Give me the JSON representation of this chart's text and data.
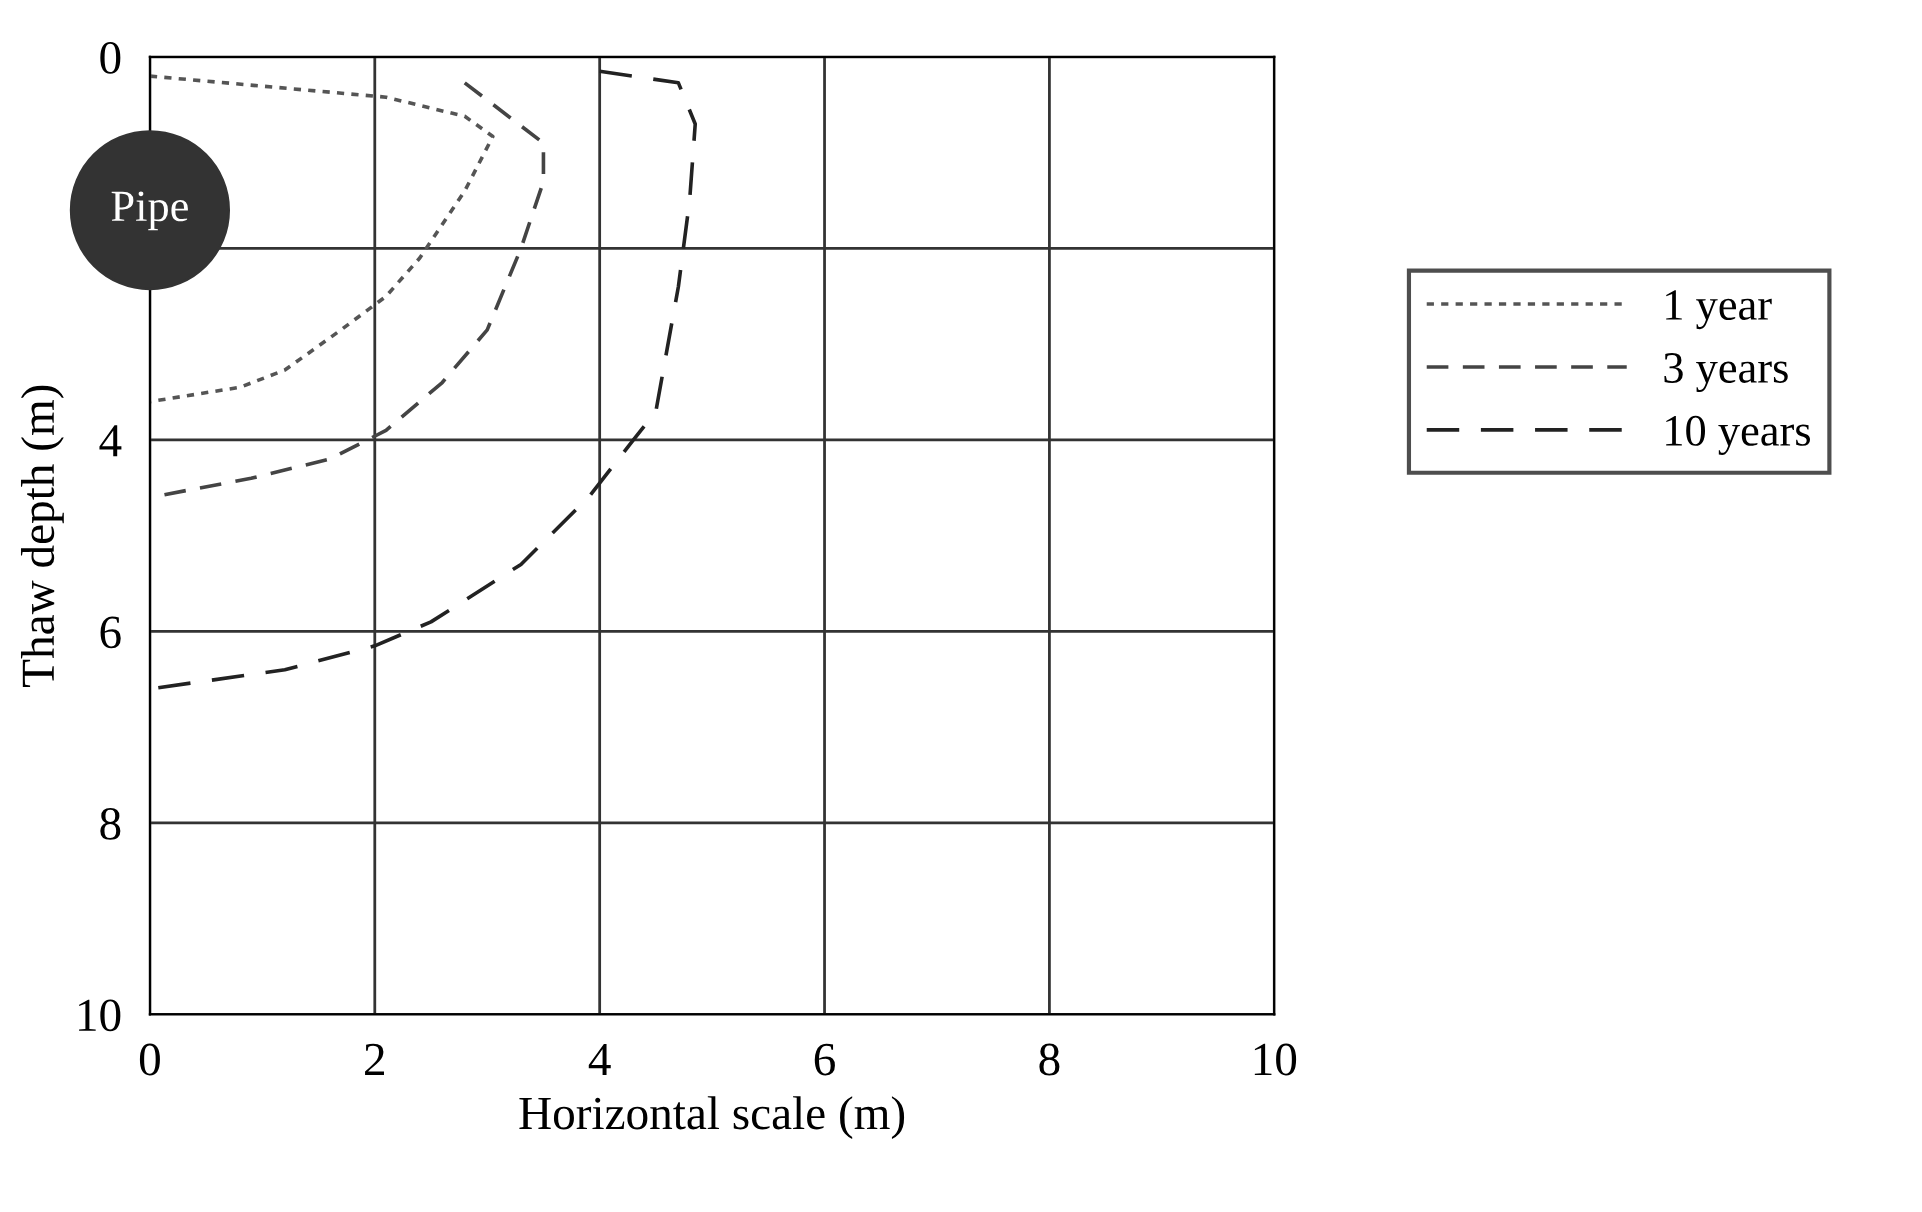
{
  "chart_data": {
    "type": "line",
    "xlabel": "Horizontal scale (m)",
    "ylabel": "Thaw depth (m)",
    "xlim": [
      0,
      10
    ],
    "ylim": [
      10,
      0
    ],
    "xticks": [
      0,
      2,
      4,
      6,
      8,
      10
    ],
    "yticks": [
      0,
      {
        "value": 2,
        "label": null
      },
      4,
      6,
      8,
      10
    ],
    "grid": true,
    "legend": "right",
    "marker": "none",
    "annotations": [
      "Pipe"
    ],
    "series": [
      {
        "name": "1 year",
        "color": "#555555",
        "line_style": "dotted",
        "x": [
          0,
          2.1,
          2.8,
          3.05,
          2.8,
          2.4,
          2.1,
          1.7,
          1.2,
          0.8,
          0
        ],
        "values": [
          0.2,
          0.42,
          0.62,
          0.83,
          1.4,
          2.1,
          2.5,
          2.85,
          3.27,
          3.45,
          3.6
        ]
      },
      {
        "name": "3 years",
        "color": "#444444",
        "line_style": "dashed",
        "x": [
          2.8,
          3.5,
          3.5,
          3.3,
          3.0,
          2.6,
          2.1,
          1.6,
          0.9,
          0
        ],
        "values": [
          0.27,
          0.9,
          1.3,
          2.0,
          2.85,
          3.4,
          3.9,
          4.2,
          4.4,
          4.6
        ]
      },
      {
        "name": "10 years",
        "color": "#222222",
        "line_style": "dashed",
        "x": [
          4.0,
          4.7,
          4.85,
          4.8,
          4.7,
          4.5,
          4.3,
          3.9,
          3.3,
          2.5,
          2.0,
          1.2,
          0
        ],
        "values": [
          0.15,
          0.27,
          0.7,
          1.5,
          2.4,
          3.7,
          4.0,
          4.6,
          5.3,
          5.9,
          6.15,
          6.4,
          6.6
        ]
      }
    ]
  }
}
